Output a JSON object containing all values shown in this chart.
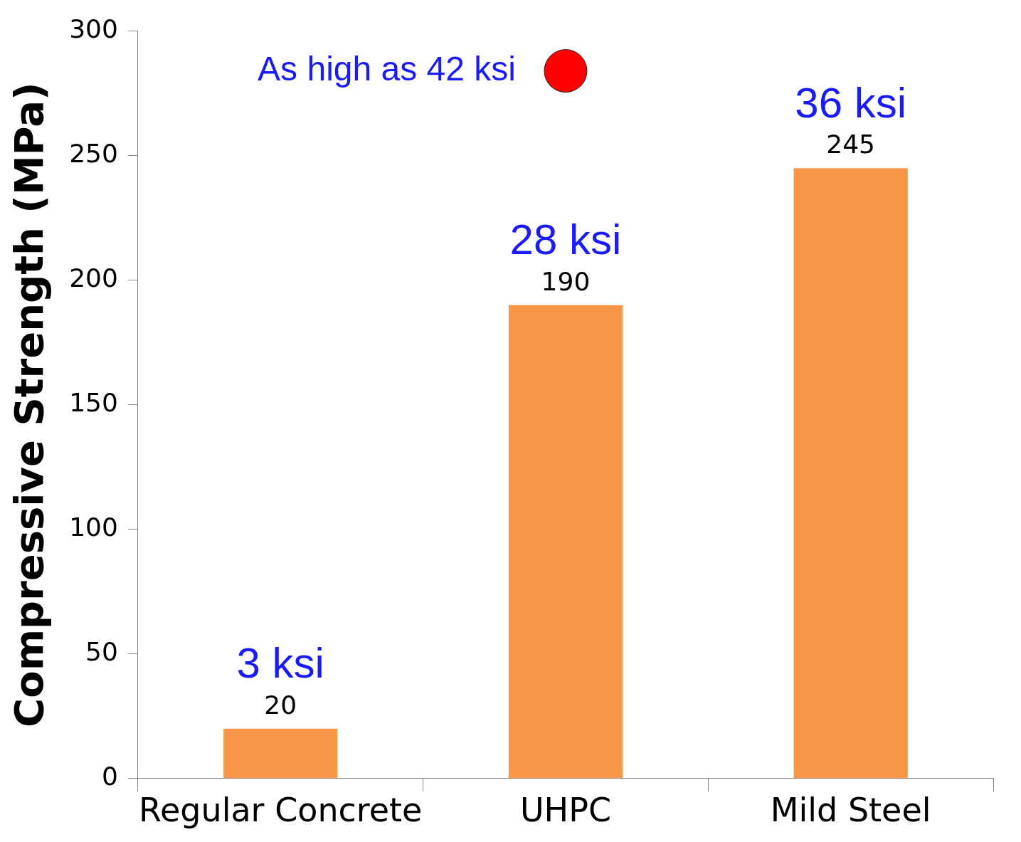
{
  "chart_data": {
    "type": "bar",
    "ylabel": "Compressive Strength (MPa)",
    "categories": [
      "Regular Concrete",
      "UHPC",
      "Mild Steel"
    ],
    "series": [
      {
        "color": "#f79646",
        "values": [
          20,
          190,
          245
        ],
        "value_labels": [
          "20",
          "190",
          "245"
        ]
      },
      {
        "type": "scatter",
        "color": "#ff0000",
        "x": [
          "UHPC"
        ],
        "values": [
          284
        ],
        "marker": "circle"
      }
    ],
    "ylim": [
      0,
      300
    ],
    "yticks": [
      0,
      50,
      100,
      150,
      200,
      250,
      300
    ],
    "grid": false,
    "legend": false,
    "annotations": [
      {
        "text": "3 ksi",
        "x": "Regular Concrete",
        "y": 20
      },
      {
        "text": "28 ksi",
        "x": "UHPC",
        "y": 190
      },
      {
        "text": "36 ksi",
        "x": "Mild Steel",
        "y": 245
      },
      {
        "text": "As high as 42 ksi",
        "x": "UHPC",
        "y": 284
      }
    ]
  }
}
